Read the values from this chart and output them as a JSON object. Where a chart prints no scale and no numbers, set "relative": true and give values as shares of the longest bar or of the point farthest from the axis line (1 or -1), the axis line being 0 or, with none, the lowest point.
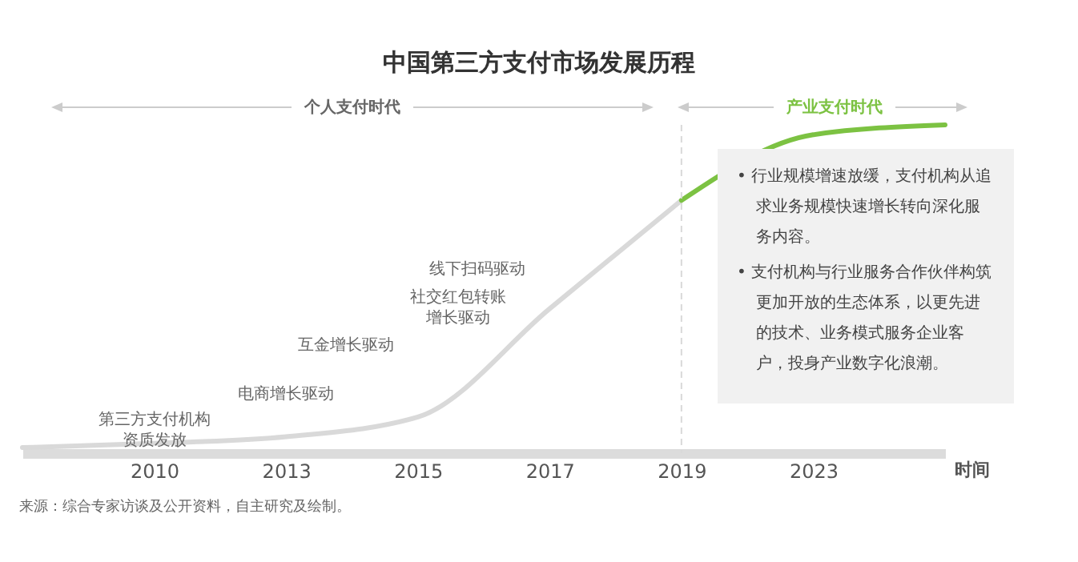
{
  "chart_data": {
    "type": "line",
    "title": "中国第三方支付市场发展历程",
    "xlabel": "时间",
    "relative": true,
    "categories": [
      null,
      "2010",
      "2013",
      "2015",
      "2017",
      "2019",
      "2023",
      null
    ],
    "series": [
      {
        "color": "#d9d9d9",
        "values": [
          0.017,
          0.03,
          0.05,
          0.11,
          0.44,
          0.77,
          null,
          null
        ]
      },
      {
        "color": "#7cc242",
        "values": [
          null,
          null,
          null,
          null,
          null,
          0.77,
          0.97,
          1
        ]
      }
    ],
    "ref_lines": [
      {
        "axis": "x",
        "value": "2019",
        "color": "#d9d9d9",
        "line_style": "dashed"
      }
    ],
    "annotations": [
      "第三方支付机构资质发放",
      "电商增长驱动",
      "互金增长驱动",
      "社交红包转账增长驱动",
      "线下扫码驱动",
      "个人支付时代",
      "产业支付时代",
      "• 行业规模增速放缓，支付机构从追求业务规模快速增长转向深化服务内容。",
      "• 支付机构与行业服务合作伙伴构筑更加开放的生态体系，以更先进的技术、业务模式服务企业客户，投身产业数字化浪潮。",
      "来源：综合专家访谈及公开资料，自主研究及绘制。"
    ]
  }
}
